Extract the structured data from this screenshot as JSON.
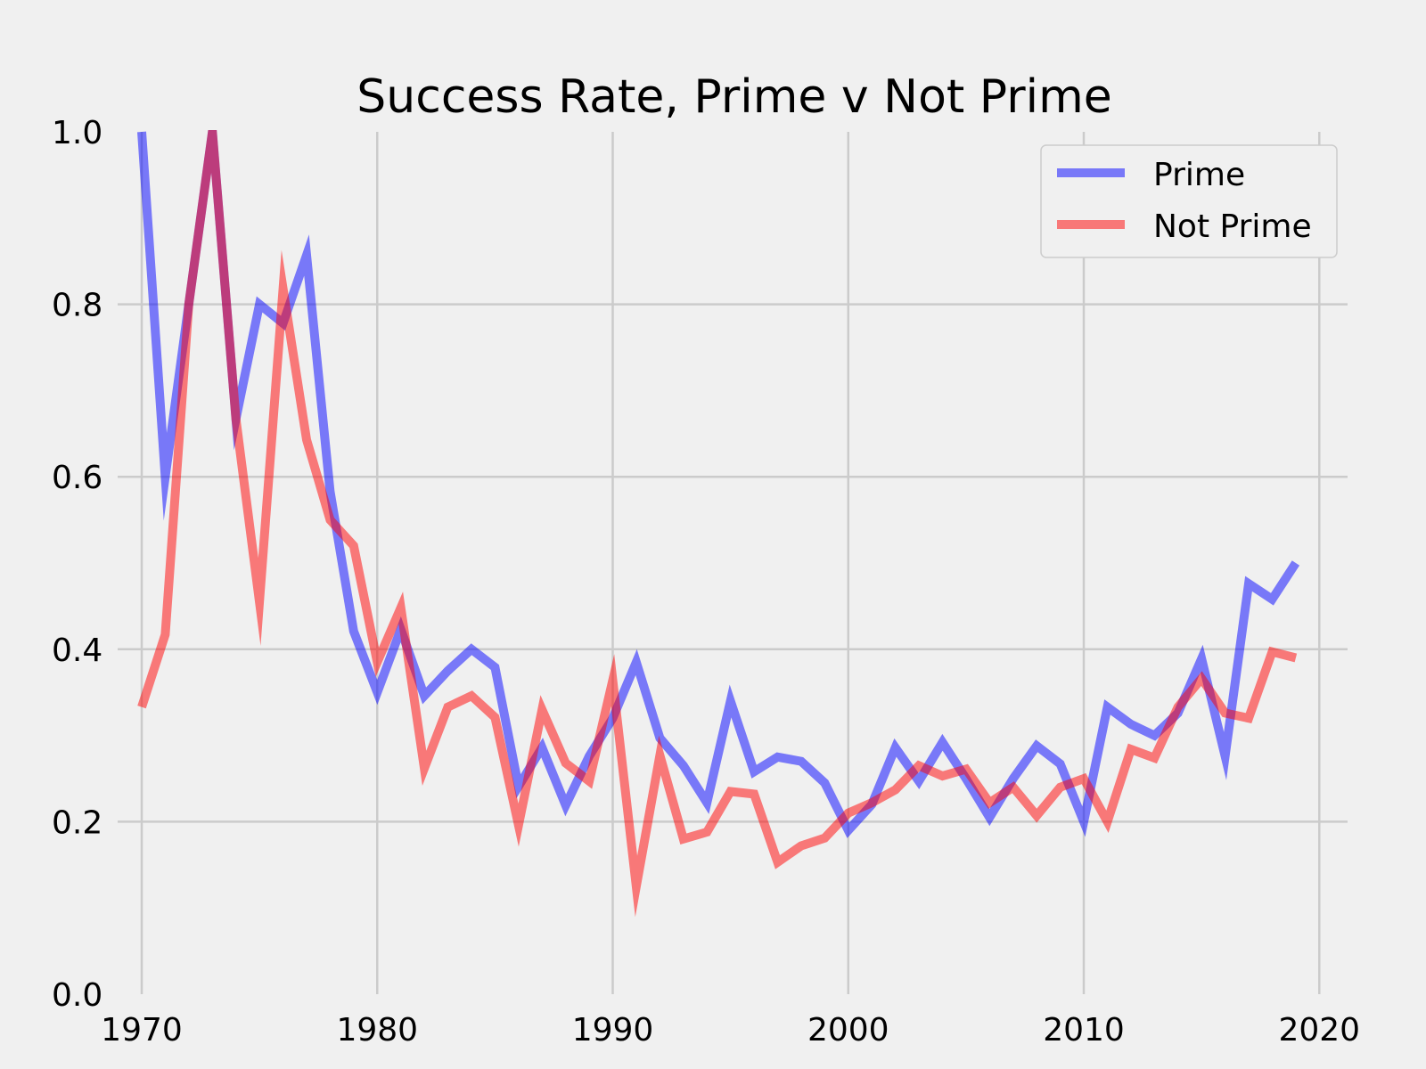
{
  "chart_data": {
    "type": "line",
    "title": "Success Rate, Prime v Not Prime",
    "xlabel": "",
    "ylabel": "",
    "xlim": [
      1968.6,
      2021.2
    ],
    "ylim": [
      0,
      1
    ],
    "x_ticks": [
      1970,
      1980,
      1990,
      2000,
      2010,
      2020
    ],
    "y_ticks": [
      0.0,
      0.2,
      0.4,
      0.6,
      0.8,
      1.0
    ],
    "x_tick_labels": [
      "1970",
      "1980",
      "1990",
      "2000",
      "2010",
      "2020"
    ],
    "y_tick_labels": [
      "0.0",
      "0.2",
      "0.4",
      "0.6",
      "0.8",
      "1.0"
    ],
    "grid": true,
    "legend_position": "top-right",
    "x": [
      1970,
      1971,
      1972,
      1973,
      1974,
      1975,
      1976,
      1977,
      1978,
      1979,
      1980,
      1981,
      1982,
      1983,
      1984,
      1985,
      1986,
      1987,
      1988,
      1989,
      1990,
      1991,
      1992,
      1993,
      1994,
      1995,
      1996,
      1997,
      1998,
      1999,
      2000,
      2001,
      2002,
      2003,
      2004,
      2005,
      2006,
      2007,
      2008,
      2009,
      2010,
      2011,
      2012,
      2013,
      2014,
      2015,
      2016,
      2017,
      2018,
      2019
    ],
    "series": [
      {
        "name": "Prime",
        "color": "#0000ff",
        "values": [
          1.0,
          0.6,
          0.8,
          1.0,
          0.667,
          0.8,
          0.778,
          0.857,
          0.583,
          0.421,
          0.35,
          0.423,
          0.346,
          0.375,
          0.4,
          0.379,
          0.241,
          0.286,
          0.219,
          0.276,
          0.32,
          0.385,
          0.297,
          0.265,
          0.222,
          0.34,
          0.258,
          0.275,
          0.27,
          0.245,
          0.19,
          0.22,
          0.286,
          0.247,
          0.292,
          0.25,
          0.205,
          0.25,
          0.288,
          0.267,
          0.2,
          0.333,
          0.313,
          0.3,
          0.326,
          0.389,
          0.276,
          0.476,
          0.458,
          0.5
        ]
      },
      {
        "name": "Not Prime",
        "color": "#ff0000",
        "values": [
          0.333,
          0.417,
          0.8,
          1.0,
          0.667,
          0.455,
          0.818,
          0.643,
          0.55,
          0.52,
          0.385,
          0.448,
          0.262,
          0.333,
          0.346,
          0.321,
          0.196,
          0.33,
          0.268,
          0.247,
          0.364,
          0.125,
          0.277,
          0.18,
          0.188,
          0.235,
          0.232,
          0.153,
          0.172,
          0.181,
          0.21,
          0.222,
          0.237,
          0.265,
          0.253,
          0.261,
          0.222,
          0.24,
          0.207,
          0.24,
          0.25,
          0.2,
          0.284,
          0.274,
          0.333,
          0.366,
          0.326,
          0.32,
          0.397,
          0.39
        ]
      }
    ]
  }
}
